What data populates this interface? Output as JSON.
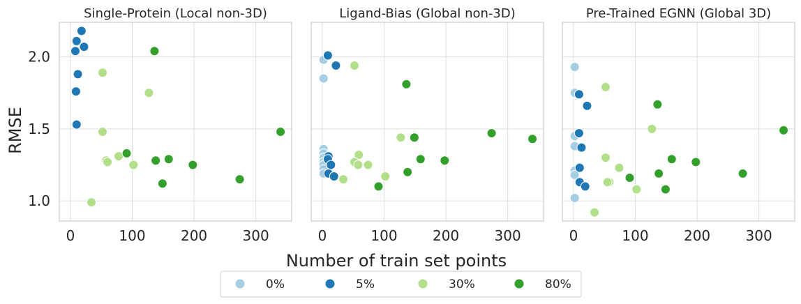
{
  "figure": {
    "shared_xlabel": "Number of train set points",
    "shared_ylabel": "RMSE",
    "legend_title": ""
  },
  "legend": [
    {
      "label": "0%",
      "color": "#a6cee3"
    },
    {
      "label": "5%",
      "color": "#1f78b4"
    },
    {
      "label": "30%",
      "color": "#b2df8a"
    },
    {
      "label": "80%",
      "color": "#33a02c"
    }
  ],
  "chart_data": [
    {
      "type": "scatter",
      "title": "Single-Protein (Local non-3D)",
      "xlabel": "",
      "ylabel": "RMSE",
      "xlim": [
        -18,
        358
      ],
      "ylim": [
        0.86,
        2.24
      ],
      "xticks": [
        0,
        100,
        200,
        300
      ],
      "yticks": [
        1.0,
        1.5,
        2.0
      ],
      "ytick_labels": [
        "1.0",
        "1.5",
        "2.0"
      ],
      "grid": true,
      "series": [
        {
          "name": "0%",
          "color": "#a6cee3",
          "points": []
        },
        {
          "name": "5%",
          "color": "#1f78b4",
          "points": [
            [
              18,
              2.18
            ],
            [
              10,
              2.11
            ],
            [
              22,
              2.07
            ],
            [
              8,
              2.04
            ],
            [
              12,
              1.88
            ],
            [
              9,
              1.76
            ],
            [
              10,
              1.53
            ]
          ]
        },
        {
          "name": "30%",
          "color": "#b2df8a",
          "points": [
            [
              52,
              1.89
            ],
            [
              127,
              1.75
            ],
            [
              52,
              1.48
            ],
            [
              78,
              1.31
            ],
            [
              58,
              1.28
            ],
            [
              60,
              1.27
            ],
            [
              102,
              1.25
            ],
            [
              34,
              0.99
            ]
          ]
        },
        {
          "name": "80%",
          "color": "#33a02c",
          "points": [
            [
              136,
              2.04
            ],
            [
              340,
              1.48
            ],
            [
              91,
              1.33
            ],
            [
              159,
              1.29
            ],
            [
              138,
              1.28
            ],
            [
              198,
              1.25
            ],
            [
              149,
              1.12
            ],
            [
              274,
              1.15
            ]
          ]
        }
      ]
    },
    {
      "type": "scatter",
      "title": "Ligand-Bias (Global non-3D)",
      "xlabel": "",
      "ylabel": "",
      "xlim": [
        -18,
        358
      ],
      "ylim": [
        0.86,
        2.24
      ],
      "xticks": [
        0,
        100,
        200,
        300
      ],
      "yticks": [
        1.0,
        1.5,
        2.0
      ],
      "ytick_labels": [
        "",
        "",
        ""
      ],
      "grid": true,
      "series": [
        {
          "name": "0%",
          "color": "#a6cee3",
          "points": [
            [
              2,
              1.98
            ],
            [
              2,
              1.85
            ],
            [
              2,
              1.36
            ],
            [
              2,
              1.33
            ],
            [
              2,
              1.3
            ],
            [
              2,
              1.27
            ],
            [
              2,
              1.25
            ],
            [
              2,
              1.22
            ],
            [
              2,
              1.19
            ]
          ]
        },
        {
          "name": "5%",
          "color": "#1f78b4",
          "points": [
            [
              9,
              2.01
            ],
            [
              22,
              1.94
            ],
            [
              10,
              1.31
            ],
            [
              9,
              1.29
            ],
            [
              14,
              1.25
            ],
            [
              10,
              1.19
            ],
            [
              19,
              1.17
            ]
          ]
        },
        {
          "name": "30%",
          "color": "#b2df8a",
          "points": [
            [
              52,
              1.94
            ],
            [
              127,
              1.44
            ],
            [
              59,
              1.32
            ],
            [
              52,
              1.27
            ],
            [
              58,
              1.25
            ],
            [
              74,
              1.25
            ],
            [
              102,
              1.17
            ],
            [
              34,
              1.15
            ]
          ]
        },
        {
          "name": "80%",
          "color": "#33a02c",
          "points": [
            [
              136,
              1.81
            ],
            [
              274,
              1.47
            ],
            [
              149,
              1.44
            ],
            [
              340,
              1.43
            ],
            [
              159,
              1.29
            ],
            [
              198,
              1.28
            ],
            [
              138,
              1.2
            ],
            [
              91,
              1.1
            ]
          ]
        }
      ]
    },
    {
      "type": "scatter",
      "title": "Pre-Trained EGNN (Global 3D)",
      "xlabel": "",
      "ylabel": "",
      "xlim": [
        -18,
        358
      ],
      "ylim": [
        0.86,
        2.24
      ],
      "xticks": [
        0,
        100,
        200,
        300
      ],
      "yticks": [
        1.0,
        1.5,
        2.0
      ],
      "ytick_labels": [
        "",
        "",
        ""
      ],
      "grid": true,
      "series": [
        {
          "name": "0%",
          "color": "#a6cee3",
          "points": [
            [
              2,
              1.93
            ],
            [
              2,
              1.75
            ],
            [
              2,
              1.45
            ],
            [
              2,
              1.38
            ],
            [
              2,
              1.21
            ],
            [
              2,
              1.18
            ],
            [
              2,
              1.02
            ]
          ]
        },
        {
          "name": "5%",
          "color": "#1f78b4",
          "points": [
            [
              9,
              1.74
            ],
            [
              22,
              1.66
            ],
            [
              9,
              1.47
            ],
            [
              13,
              1.37
            ],
            [
              10,
              1.23
            ],
            [
              10,
              1.13
            ],
            [
              19,
              1.1
            ]
          ]
        },
        {
          "name": "30%",
          "color": "#b2df8a",
          "points": [
            [
              52,
              1.79
            ],
            [
              127,
              1.5
            ],
            [
              52,
              1.3
            ],
            [
              74,
              1.23
            ],
            [
              58,
              1.13
            ],
            [
              55,
              1.13
            ],
            [
              102,
              1.08
            ],
            [
              34,
              0.92
            ]
          ]
        },
        {
          "name": "80%",
          "color": "#33a02c",
          "points": [
            [
              136,
              1.67
            ],
            [
              340,
              1.49
            ],
            [
              159,
              1.29
            ],
            [
              198,
              1.27
            ],
            [
              138,
              1.19
            ],
            [
              274,
              1.19
            ],
            [
              91,
              1.16
            ],
            [
              149,
              1.08
            ]
          ]
        }
      ]
    }
  ]
}
